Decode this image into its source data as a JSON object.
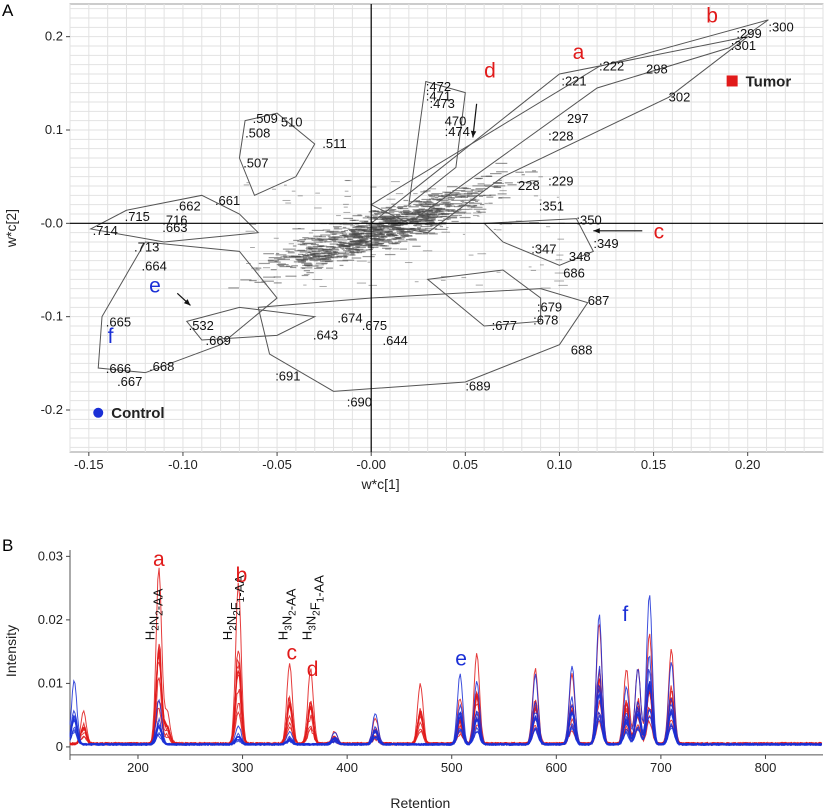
{
  "figure": {
    "panel_a_letter": "A",
    "panel_b_letter": "B"
  },
  "colors": {
    "tumor": "#e11a1a",
    "control": "#1a2fd6",
    "grid": "#e2e2e2",
    "ink": "#444444"
  },
  "chart_data": [
    {
      "type": "scatter",
      "panel": "A",
      "title": "",
      "xlabel": "w*c[1]",
      "ylabel": "w*c[2]",
      "xlim": [
        -0.16,
        0.24
      ],
      "ylim": [
        -0.245,
        0.235
      ],
      "x_ticks": [
        -0.15,
        -0.1,
        -0.05,
        0.0,
        0.05,
        0.1,
        0.15,
        0.2
      ],
      "x_tick_labels": [
        "-0.15",
        "-0.10",
        "-0.05",
        "-0.00",
        "0.05",
        "0.10",
        "0.15",
        "0.20"
      ],
      "y_ticks": [
        0.2,
        0.1,
        0.0,
        -0.1,
        -0.2
      ],
      "y_tick_labels": [
        "0.2",
        "0.1",
        "-0.0",
        "-0.1",
        "-0.2"
      ],
      "grid": true,
      "legend": [
        {
          "name": "Tumor",
          "marker": "square",
          "color": "#e11a1a",
          "position": [
            0.192,
            0.152
          ]
        },
        {
          "name": "Control",
          "marker": "circle",
          "color": "#1a2fd6",
          "position": [
            -0.145,
            -0.203
          ]
        }
      ],
      "labeled_points": [
        {
          "label": ":300",
          "x": 0.211,
          "y": 0.21
        },
        {
          "label": ":299",
          "x": 0.194,
          "y": 0.203
        },
        {
          "label": ":301",
          "x": 0.191,
          "y": 0.19
        },
        {
          "label": ":222",
          "x": 0.121,
          "y": 0.168
        },
        {
          "label": "298",
          "x": 0.146,
          "y": 0.165
        },
        {
          "label": ":221",
          "x": 0.101,
          "y": 0.152
        },
        {
          "label": "302",
          "x": 0.158,
          "y": 0.135
        },
        {
          "label": "297",
          "x": 0.104,
          "y": 0.112
        },
        {
          "label": ":228",
          "x": 0.094,
          "y": 0.093
        },
        {
          "label": ":229",
          "x": 0.094,
          "y": 0.045
        },
        {
          "label": "228",
          "x": 0.078,
          "y": 0.04
        },
        {
          "label": ":351",
          "x": 0.089,
          "y": 0.018
        },
        {
          "label": ":350",
          "x": 0.109,
          "y": 0.003
        },
        {
          "label": ":349",
          "x": 0.118,
          "y": -0.022
        },
        {
          "label": "348",
          "x": 0.105,
          "y": -0.036
        },
        {
          "label": ":347",
          "x": 0.085,
          "y": -0.028
        },
        {
          "label": "686",
          "x": 0.102,
          "y": -0.054
        },
        {
          "label": "687",
          "x": 0.115,
          "y": -0.083
        },
        {
          "label": "688",
          "x": 0.106,
          "y": -0.136
        },
        {
          "label": ":679",
          "x": 0.088,
          "y": -0.09
        },
        {
          "label": ":678",
          "x": 0.086,
          "y": -0.104
        },
        {
          "label": ":677",
          "x": 0.064,
          "y": -0.11
        },
        {
          "label": ":689",
          "x": 0.05,
          "y": -0.175
        },
        {
          "label": ":690",
          "x": -0.013,
          "y": -0.192
        },
        {
          "label": ":691",
          "x": -0.051,
          "y": -0.164
        },
        {
          "label": ":472",
          "x": 0.029,
          "y": 0.146
        },
        {
          "label": ":471",
          "x": 0.029,
          "y": 0.136
        },
        {
          "label": ":473",
          "x": 0.031,
          "y": 0.128
        },
        {
          "label": "470",
          "x": 0.039,
          "y": 0.109
        },
        {
          "label": ":474",
          "x": 0.039,
          "y": 0.098
        },
        {
          "label": ".509",
          "x": -0.063,
          "y": 0.112
        },
        {
          "label": "510",
          "x": -0.048,
          "y": 0.108
        },
        {
          "label": ".508",
          "x": -0.067,
          "y": 0.096
        },
        {
          "label": ".511",
          "x": -0.026,
          "y": 0.085
        },
        {
          "label": ".507",
          "x": -0.068,
          "y": 0.064
        },
        {
          "label": ".662",
          "x": -0.104,
          "y": 0.018
        },
        {
          "label": ".661",
          "x": -0.083,
          "y": 0.024
        },
        {
          "label": ".715",
          "x": -0.131,
          "y": 0.007
        },
        {
          "label": ".716",
          "x": -0.111,
          "y": 0.003
        },
        {
          "label": ".663",
          "x": -0.111,
          "y": -0.005
        },
        {
          "label": ".714",
          "x": -0.148,
          "y": -0.008
        },
        {
          "label": ".713",
          "x": -0.126,
          "y": -0.026
        },
        {
          "label": ".664",
          "x": -0.122,
          "y": -0.046
        },
        {
          "label": ".665",
          "x": -0.141,
          "y": -0.106
        },
        {
          "label": ".666",
          "x": -0.141,
          "y": -0.156
        },
        {
          "label": ".668",
          "x": -0.118,
          "y": -0.154
        },
        {
          "label": ".667",
          "x": -0.135,
          "y": -0.17
        },
        {
          "label": ".532",
          "x": -0.097,
          "y": -0.11
        },
        {
          "label": ".669",
          "x": -0.088,
          "y": -0.126
        },
        {
          "label": ".643",
          "x": -0.031,
          "y": -0.12
        },
        {
          "label": ".644",
          "x": 0.006,
          "y": -0.126
        },
        {
          "label": ".675",
          "x": -0.005,
          "y": -0.11
        },
        {
          "label": ".674",
          "x": -0.018,
          "y": -0.102
        }
      ],
      "annotations": [
        {
          "text": "a",
          "color": "#e11a1a",
          "x": 0.107,
          "y": 0.176
        },
        {
          "text": "b",
          "color": "#e11a1a",
          "x": 0.178,
          "y": 0.215
        },
        {
          "text": "c",
          "color": "#e11a1a",
          "x": 0.15,
          "y": -0.016
        },
        {
          "text": "d",
          "color": "#e11a1a",
          "x": 0.06,
          "y": 0.156
        },
        {
          "text": "e",
          "color": "#1a2fd6",
          "x": -0.118,
          "y": -0.074
        },
        {
          "text": "f",
          "color": "#1a2fd6",
          "x": -0.14,
          "y": -0.128
        }
      ]
    },
    {
      "type": "line",
      "panel": "B",
      "title": "",
      "xlabel": "Retention",
      "ylabel": "Intensity",
      "xlim": [
        135,
        855
      ],
      "ylim": [
        -0.0008,
        0.031
      ],
      "x_ticks": [
        200,
        300,
        400,
        500,
        600,
        700,
        800
      ],
      "x_tick_labels": [
        "200",
        "300",
        "400",
        "500",
        "600",
        "700",
        "800"
      ],
      "y_ticks": [
        0,
        0.01,
        0.02,
        0.03
      ],
      "y_tick_labels": [
        "0",
        "0.01",
        "0.02",
        "0.03"
      ],
      "grid": false,
      "series": [
        {
          "name": "Tumor",
          "color": "#e11a1a",
          "baseline": 0.0005,
          "peaks": [
            {
              "x": 148,
              "y": 0.005
            },
            {
              "x": 220,
              "y": 0.0277
            },
            {
              "x": 228,
              "y": 0.005
            },
            {
              "x": 296,
              "y": 0.0253
            },
            {
              "x": 345,
              "y": 0.0128
            },
            {
              "x": 365,
              "y": 0.0118
            },
            {
              "x": 388,
              "y": 0.002
            },
            {
              "x": 427,
              "y": 0.004
            },
            {
              "x": 470,
              "y": 0.0095
            },
            {
              "x": 508,
              "y": 0.0072
            },
            {
              "x": 524,
              "y": 0.0143
            },
            {
              "x": 580,
              "y": 0.0118
            },
            {
              "x": 615,
              "y": 0.011
            },
            {
              "x": 641,
              "y": 0.019
            },
            {
              "x": 667,
              "y": 0.0118
            },
            {
              "x": 678,
              "y": 0.012
            },
            {
              "x": 689,
              "y": 0.0175
            },
            {
              "x": 710,
              "y": 0.0148
            }
          ]
        },
        {
          "name": "Control",
          "color": "#1a2fd6",
          "baseline": 0.0004,
          "peaks": [
            {
              "x": 139,
              "y": 0.01
            },
            {
              "x": 220,
              "y": 0.007
            },
            {
              "x": 296,
              "y": 0.003
            },
            {
              "x": 345,
              "y": 0.002
            },
            {
              "x": 388,
              "y": 0.002
            },
            {
              "x": 427,
              "y": 0.005
            },
            {
              "x": 508,
              "y": 0.011
            },
            {
              "x": 524,
              "y": 0.01
            },
            {
              "x": 580,
              "y": 0.011
            },
            {
              "x": 615,
              "y": 0.0125
            },
            {
              "x": 641,
              "y": 0.0205
            },
            {
              "x": 667,
              "y": 0.009
            },
            {
              "x": 678,
              "y": 0.012
            },
            {
              "x": 689,
              "y": 0.0238
            },
            {
              "x": 710,
              "y": 0.013
            }
          ]
        }
      ],
      "peak_annotations": [
        {
          "text": "a",
          "color": "#e11a1a",
          "x": 220,
          "y": 0.0285
        },
        {
          "text": "b",
          "color": "#e11a1a",
          "x": 299,
          "y": 0.026
        },
        {
          "text": "c",
          "color": "#e11a1a",
          "x": 347,
          "y": 0.0138
        },
        {
          "text": "d",
          "color": "#e11a1a",
          "x": 367,
          "y": 0.0112
        },
        {
          "text": "e",
          "color": "#1a2fd6",
          "x": 509,
          "y": 0.0128
        },
        {
          "text": "f",
          "color": "#1a2fd6",
          "x": 666,
          "y": 0.0198
        }
      ],
      "glycan_labels": [
        {
          "prefix": "H",
          "sub1": "2",
          "mid": "N",
          "sub2": "2",
          "mid2": "",
          "sub3": "",
          "suffix": "-AA",
          "x": 216
        },
        {
          "prefix": "H",
          "sub1": "2",
          "mid": "N",
          "sub2": "2",
          "mid2": "F",
          "sub3": "1",
          "suffix": "-AA",
          "x": 290
        },
        {
          "prefix": "H",
          "sub1": "3",
          "mid": "N",
          "sub2": "2",
          "mid2": "",
          "sub3": "",
          "suffix": "-AA",
          "x": 343
        },
        {
          "prefix": "H",
          "sub1": "3",
          "mid": "N",
          "sub2": "2",
          "mid2": "F",
          "sub3": "1",
          "suffix": "-AA",
          "x": 366
        }
      ]
    }
  ]
}
